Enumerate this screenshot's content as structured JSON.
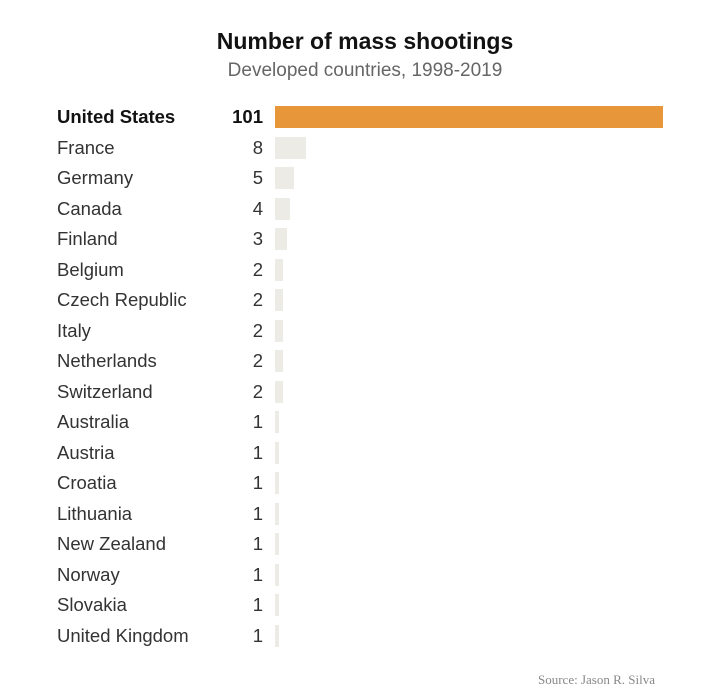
{
  "chart_data": {
    "type": "bar",
    "orientation": "horizontal",
    "title": "Number of mass shootings",
    "subtitle": "Developed countries, 1998-2019",
    "source": "Source: Jason R. Silva",
    "categories": [
      "United States",
      "France",
      "Germany",
      "Canada",
      "Finland",
      "Belgium",
      "Czech Republic",
      "Italy",
      "Netherlands",
      "Switzerland",
      "Australia",
      "Austria",
      "Croatia",
      "Lithuania",
      "New Zealand",
      "Norway",
      "Slovakia",
      "United Kingdom"
    ],
    "values": [
      101,
      8,
      5,
      4,
      3,
      2,
      2,
      2,
      2,
      2,
      1,
      1,
      1,
      1,
      1,
      1,
      1,
      1
    ],
    "highlight": "United States",
    "xlim": [
      0,
      101
    ],
    "grid": false,
    "legend": "none",
    "colors": {
      "highlight": "#E8963A",
      "default": "#ECEBE5"
    }
  }
}
